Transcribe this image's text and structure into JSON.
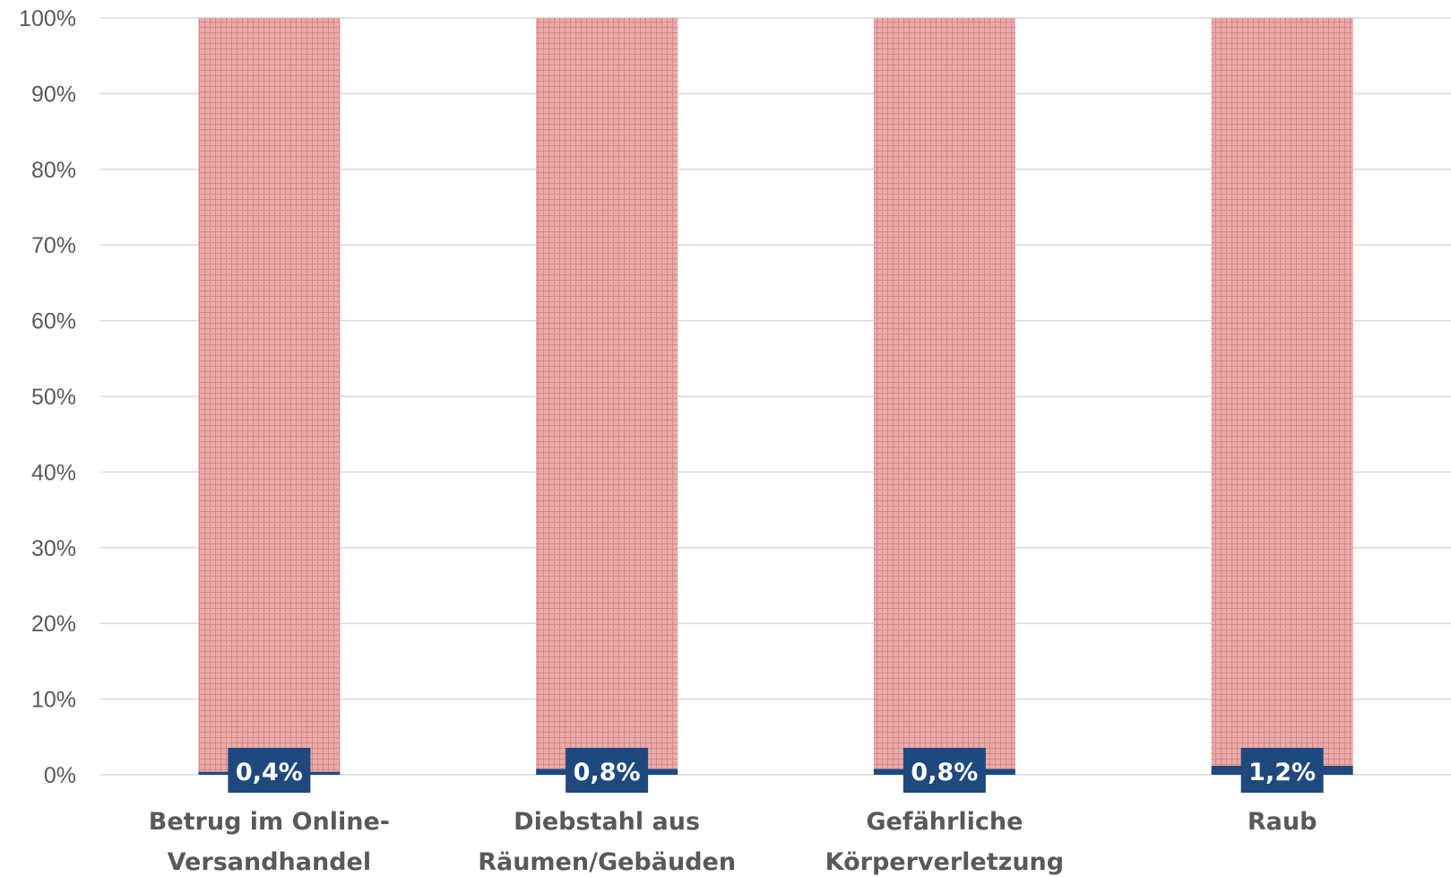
{
  "chart_data": {
    "type": "bar",
    "stacked": true,
    "percent_stacked": true,
    "categories": [
      [
        "Betrug im Online-",
        "Versandhandel"
      ],
      [
        "Diebstahl aus",
        "Räumen/Gebäuden"
      ],
      [
        "Gefährliche",
        "Körperverletzung"
      ],
      [
        "Raub"
      ]
    ],
    "series": [
      {
        "values": [
          0.4,
          0.8,
          0.8,
          1.2
        ],
        "color": "#1f497d",
        "data_labels": [
          "0,4%",
          "0,8%",
          "0,8%",
          "1,2%"
        ]
      },
      {
        "values": [
          99.6,
          99.2,
          99.2,
          98.8
        ],
        "color": "#e6a5a5",
        "pattern": "grid-hatch"
      }
    ],
    "y_ticks": [
      "0%",
      "10%",
      "20%",
      "30%",
      "40%",
      "50%",
      "60%",
      "70%",
      "80%",
      "90%",
      "100%"
    ],
    "ylim": [
      0,
      100
    ],
    "grid": true,
    "legend": "none",
    "title": "",
    "xlabel": "",
    "ylabel": ""
  }
}
